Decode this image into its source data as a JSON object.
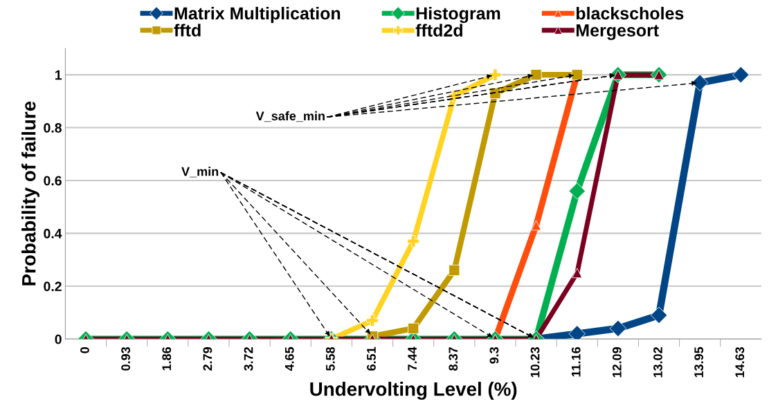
{
  "chart_data": {
    "type": "line",
    "xlabel": "Undervolting Level (%)",
    "ylabel": "Probability of failure",
    "categories": [
      "0",
      "0.93",
      "1.86",
      "2.79",
      "3.72",
      "4.65",
      "5.58",
      "6.51",
      "7.44",
      "8.37",
      "9.3",
      "10.23",
      "11.16",
      "12.09",
      "13.02",
      "13.95",
      "14.63"
    ],
    "ylim": [
      0,
      1.1
    ],
    "yticks": [
      0,
      0.2,
      0.4,
      0.6,
      0.8,
      {
        "value": 1,
        "label": "1"
      }
    ],
    "grid": "y",
    "legend": "top",
    "line_style": "solid",
    "series": [
      {
        "name": "Matrix Multiplication",
        "color": "#004586",
        "marker": "diamond",
        "values": [
          null,
          null,
          null,
          null,
          null,
          null,
          null,
          null,
          null,
          null,
          null,
          0,
          0.02,
          0.04,
          0.09,
          0.97,
          1.0
        ]
      },
      {
        "name": "Histogram",
        "color": "#00b050",
        "marker": "diamond",
        "values": [
          0,
          0,
          0,
          0,
          0,
          0,
          0,
          0,
          0,
          0,
          0,
          0,
          0.56,
          1.0,
          1.0,
          null,
          null
        ]
      },
      {
        "name": "blackscholes",
        "color": "#ff4d0d",
        "marker": "triangle",
        "values": [
          null,
          null,
          null,
          null,
          null,
          null,
          null,
          null,
          null,
          null,
          0,
          0.43,
          1.0,
          null,
          null,
          null,
          null
        ]
      },
      {
        "name": "fftd",
        "color": "#c09a00",
        "marker": "square",
        "values": [
          null,
          null,
          null,
          null,
          null,
          null,
          null,
          0.01,
          0.04,
          0.26,
          0.93,
          1.0,
          1.0,
          null,
          null,
          null,
          null
        ]
      },
      {
        "name": "fftd2d",
        "color": "#ffd320",
        "marker": "cross",
        "values": [
          null,
          null,
          null,
          null,
          null,
          null,
          0,
          0.07,
          0.37,
          0.92,
          1.0,
          null,
          null,
          null,
          null,
          null,
          null
        ]
      },
      {
        "name": "Mergesort",
        "color": "#7b0020",
        "marker": "triangle",
        "values": [
          0,
          0,
          0,
          0,
          0,
          0,
          0,
          0,
          0,
          0,
          0,
          0,
          0.25,
          1.0,
          1.0,
          null,
          null
        ]
      }
    ],
    "annotations": [
      {
        "text": "V_safe_min",
        "x": "12.09",
        "y": 1.0
      },
      {
        "text": "V_min",
        "x": "10.23",
        "y": 0
      }
    ]
  }
}
